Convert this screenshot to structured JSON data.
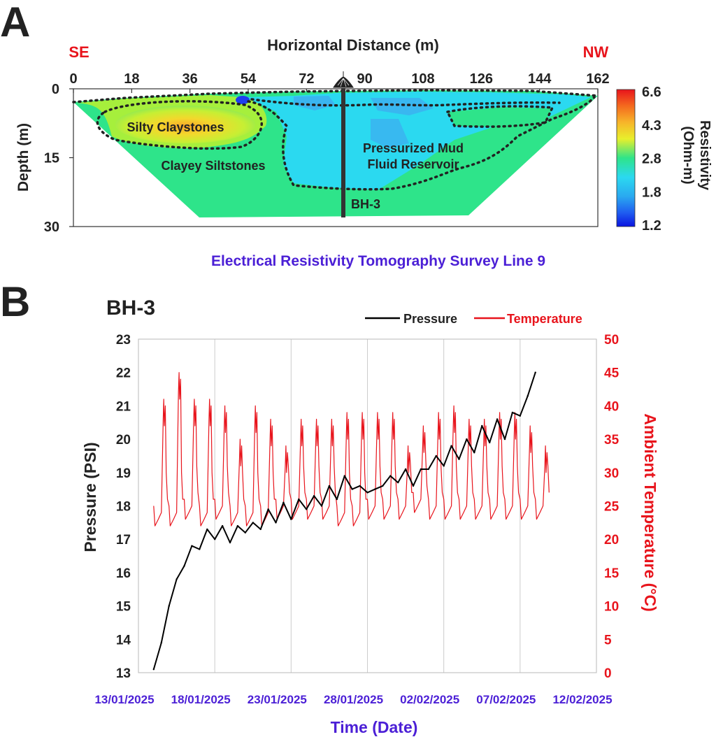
{
  "panel_a": {
    "panel_letter": "A",
    "x_axis_title": "Horizontal Distance (m)",
    "left_direction": "SE",
    "right_direction": "NW",
    "y_axis_title": "Depth (m)",
    "x_ticks": [
      "0",
      "18",
      "36",
      "54",
      "72",
      "90",
      "108",
      "126",
      "144",
      "162"
    ],
    "y_ticks": [
      "0",
      "15",
      "30"
    ],
    "labels": {
      "silty": "Silty Claystones",
      "clayey": "Clayey Siltstones",
      "mud1": "Pressurized Mud",
      "mud2": "Fluid Reservoir",
      "borehole": "BH-3"
    },
    "colorbar_title_line1": "Resistivity",
    "colorbar_title_line2": "(Ohm-m)",
    "colorbar_ticks": [
      "6.6",
      "4.3",
      "2.8",
      "1.8",
      "1.2"
    ],
    "caption": "Electrical Resistivity Tomography Survey Line 9",
    "colors": {
      "direction": "#e8141c",
      "caption": "#4b1fd6",
      "green": "#2ee48a",
      "cyan": "#2bd9f0",
      "yellow": "#e8ef2c"
    }
  },
  "panel_b": {
    "panel_letter": "B",
    "title": "BH-3",
    "legend": {
      "pressure": "Pressure",
      "temperature": "Temperature"
    },
    "x_axis_title": "Time (Date)",
    "y_left_title": "Pressure (PSI)",
    "y_right_title": "Ambient Temperature (°C)",
    "colors": {
      "pressure": "#000000",
      "temperature": "#e8141c",
      "date_labels": "#4b1fd6"
    }
  },
  "chart_data": {
    "type": "line",
    "title": "BH-3",
    "xlabel": "Time (Date)",
    "ylabel": "Pressure (PSI)",
    "y2label": "Ambient Temperature (°C)",
    "x_ticks": [
      "13/01/2025",
      "18/01/2025",
      "23/01/2025",
      "28/01/2025",
      "02/02/2025",
      "07/02/2025",
      "12/02/2025"
    ],
    "xlim": [
      "2025-01-13",
      "2025-02-12"
    ],
    "ylim": [
      13,
      23
    ],
    "y_ticks": [
      "13",
      "14",
      "15",
      "16",
      "17",
      "18",
      "19",
      "20",
      "21",
      "22",
      "23"
    ],
    "y2lim": [
      0,
      50
    ],
    "y2_ticks": [
      "0",
      "5",
      "10",
      "15",
      "20",
      "25",
      "30",
      "35",
      "40",
      "45",
      "50"
    ],
    "grid": "vertical",
    "legend": "top-right",
    "series": [
      {
        "name": "Pressure",
        "axis": "left",
        "x": [
          "2025-01-14",
          "2025-01-14T12:00",
          "2025-01-15",
          "2025-01-15T12:00",
          "2025-01-16",
          "2025-01-16T12:00",
          "2025-01-17",
          "2025-01-17T12:00",
          "2025-01-18",
          "2025-01-18T12:00",
          "2025-01-19",
          "2025-01-19T12:00",
          "2025-01-20",
          "2025-01-20T12:00",
          "2025-01-21",
          "2025-01-21T12:00",
          "2025-01-22",
          "2025-01-22T12:00",
          "2025-01-23",
          "2025-01-23T12:00",
          "2025-01-24",
          "2025-01-24T12:00",
          "2025-01-25",
          "2025-01-25T12:00",
          "2025-01-26",
          "2025-01-26T12:00",
          "2025-01-27",
          "2025-01-27T12:00",
          "2025-01-28",
          "2025-01-28T12:00",
          "2025-01-29",
          "2025-01-29T12:00",
          "2025-01-30",
          "2025-01-30T12:00",
          "2025-01-31",
          "2025-01-31T12:00",
          "2025-02-01",
          "2025-02-01T12:00",
          "2025-02-02",
          "2025-02-02T12:00",
          "2025-02-03",
          "2025-02-03T12:00",
          "2025-02-04",
          "2025-02-04T12:00",
          "2025-02-05",
          "2025-02-05T12:00",
          "2025-02-06",
          "2025-02-06T12:00",
          "2025-02-07",
          "2025-02-07T12:00",
          "2025-02-08"
        ],
        "values": [
          13.1,
          13.9,
          15.0,
          15.8,
          16.2,
          16.8,
          16.7,
          17.3,
          17.0,
          17.4,
          16.9,
          17.4,
          17.2,
          17.5,
          17.3,
          17.9,
          17.5,
          18.1,
          17.6,
          18.2,
          17.9,
          18.3,
          18.0,
          18.6,
          18.2,
          18.9,
          18.5,
          18.6,
          18.4,
          18.5,
          18.6,
          18.9,
          18.7,
          19.1,
          18.6,
          19.1,
          19.1,
          19.5,
          19.2,
          19.8,
          19.4,
          20.0,
          19.6,
          20.4,
          19.9,
          20.6,
          20.0,
          20.8,
          20.7,
          21.3,
          22.0
        ]
      },
      {
        "name": "Temperature",
        "axis": "right",
        "peak_dates": [
          "2025-01-14",
          "2025-01-15",
          "2025-01-16",
          "2025-01-17",
          "2025-01-18",
          "2025-01-19",
          "2025-01-20",
          "2025-01-21",
          "2025-01-22",
          "2025-01-23",
          "2025-01-24",
          "2025-01-25",
          "2025-01-26",
          "2025-01-27",
          "2025-01-28",
          "2025-01-29",
          "2025-01-30",
          "2025-01-31",
          "2025-02-01",
          "2025-02-02",
          "2025-02-03",
          "2025-02-04",
          "2025-02-05",
          "2025-02-06",
          "2025-02-07",
          "2025-02-08"
        ],
        "peaks": [
          41,
          45,
          41,
          41,
          40,
          35,
          40,
          38,
          34,
          38,
          38,
          38,
          39,
          39,
          39,
          39,
          34,
          37,
          39,
          40,
          38,
          38,
          39,
          39,
          37,
          34
        ],
        "troughs": [
          22,
          22,
          23,
          22,
          23,
          22,
          22,
          22,
          23,
          23,
          23,
          23,
          22,
          22,
          23,
          23,
          23,
          24,
          23,
          23,
          23,
          23,
          23,
          23,
          23,
          23
        ]
      }
    ]
  }
}
